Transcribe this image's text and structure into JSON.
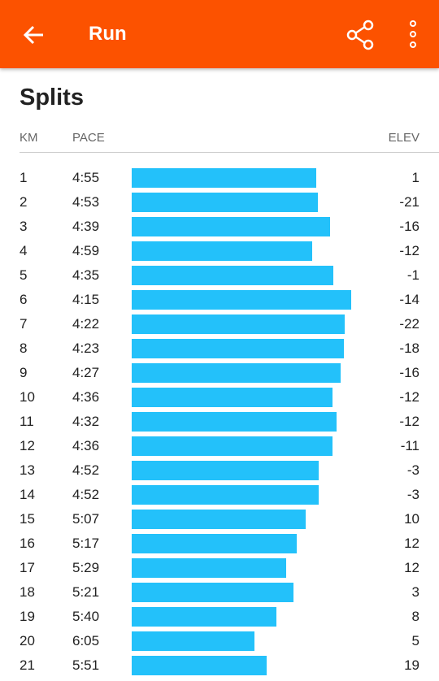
{
  "header": {
    "title": "Run"
  },
  "section": {
    "title": "Splits",
    "columns": [
      "KM",
      "PACE",
      "ELEV"
    ],
    "rows": [
      [
        1,
        "4:55",
        1
      ],
      [
        2,
        "4:53",
        -21
      ],
      [
        3,
        "4:39",
        -16
      ],
      [
        4,
        "4:59",
        -12
      ],
      [
        5,
        "4:35",
        -1
      ],
      [
        6,
        "4:15",
        -14
      ],
      [
        7,
        "4:22",
        -22
      ],
      [
        8,
        "4:23",
        -18
      ],
      [
        9,
        "4:27",
        -16
      ],
      [
        10,
        "4:36",
        -12
      ],
      [
        11,
        "4:32",
        -12
      ],
      [
        12,
        "4:36",
        -11
      ],
      [
        13,
        "4:52",
        -3
      ],
      [
        14,
        "4:52",
        -3
      ],
      [
        15,
        "5:07",
        10
      ],
      [
        16,
        "5:17",
        12
      ],
      [
        17,
        "5:29",
        12
      ],
      [
        18,
        "5:21",
        3
      ],
      [
        19,
        "5:40",
        8
      ],
      [
        20,
        "6:05",
        5
      ],
      [
        21,
        "5:51",
        19
      ]
    ]
  }
}
